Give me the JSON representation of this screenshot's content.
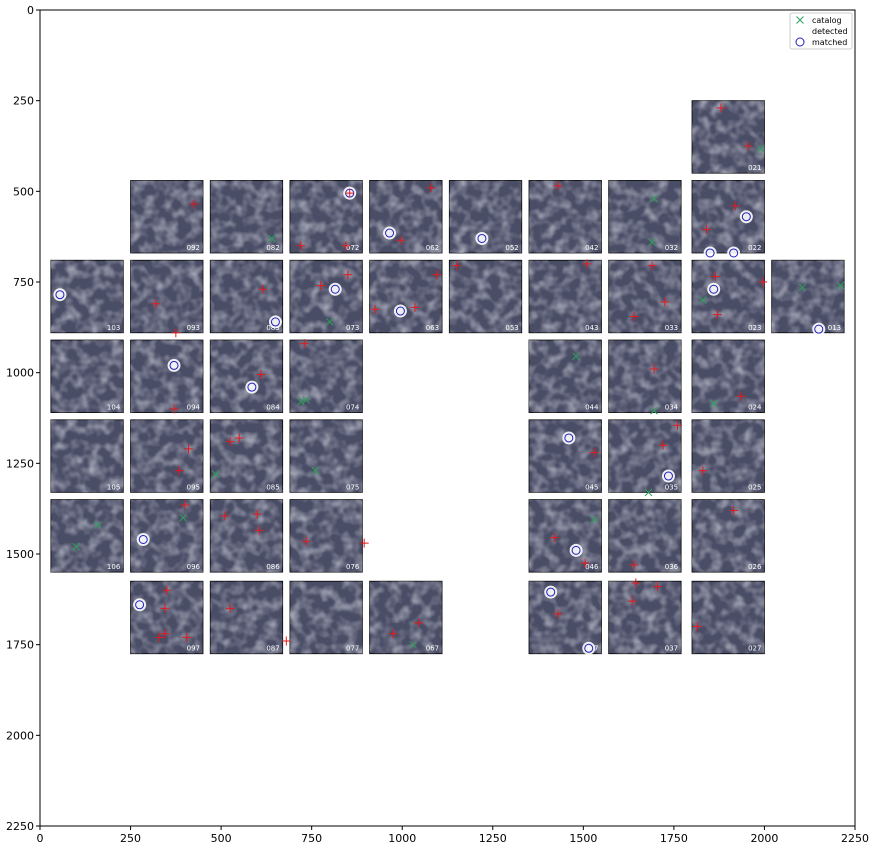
{
  "chart_data": {
    "type": "scatter",
    "xlim": [
      0,
      2250
    ],
    "ylim": [
      2250,
      0
    ],
    "x_ticks": [
      0,
      250,
      500,
      750,
      1000,
      1250,
      1500,
      1750,
      2000,
      2250
    ],
    "y_ticks": [
      0,
      250,
      500,
      750,
      1000,
      1250,
      1500,
      1750,
      2000,
      2250
    ],
    "grid": false,
    "legend": {
      "placement": "top-right",
      "entries": [
        {
          "name": "catalog",
          "marker": "x",
          "color": "#2ca05a"
        },
        {
          "name": "detected",
          "marker": "+",
          "color": "#e31a1c"
        },
        {
          "name": "matched",
          "marker": "o",
          "color": "#1f1fbf"
        }
      ]
    },
    "panel_size": 200,
    "panels": [
      {
        "id": "021",
        "x": 1800,
        "y": 250
      },
      {
        "id": "092",
        "x": 250,
        "y": 470
      },
      {
        "id": "082",
        "x": 470,
        "y": 470
      },
      {
        "id": "072",
        "x": 690,
        "y": 470
      },
      {
        "id": "062",
        "x": 910,
        "y": 470
      },
      {
        "id": "052",
        "x": 1130,
        "y": 470
      },
      {
        "id": "042",
        "x": 1350,
        "y": 470
      },
      {
        "id": "032",
        "x": 1570,
        "y": 470
      },
      {
        "id": "022",
        "x": 1800,
        "y": 470
      },
      {
        "id": "103",
        "x": 30,
        "y": 690
      },
      {
        "id": "093",
        "x": 250,
        "y": 690
      },
      {
        "id": "083",
        "x": 470,
        "y": 690
      },
      {
        "id": "073",
        "x": 690,
        "y": 690
      },
      {
        "id": "063",
        "x": 910,
        "y": 690
      },
      {
        "id": "053",
        "x": 1130,
        "y": 690
      },
      {
        "id": "043",
        "x": 1350,
        "y": 690
      },
      {
        "id": "033",
        "x": 1570,
        "y": 690
      },
      {
        "id": "023",
        "x": 1800,
        "y": 690
      },
      {
        "id": "013",
        "x": 2020,
        "y": 690
      },
      {
        "id": "104",
        "x": 30,
        "y": 910
      },
      {
        "id": "094",
        "x": 250,
        "y": 910
      },
      {
        "id": "084",
        "x": 470,
        "y": 910
      },
      {
        "id": "074",
        "x": 690,
        "y": 910
      },
      {
        "id": "044",
        "x": 1350,
        "y": 910
      },
      {
        "id": "034",
        "x": 1570,
        "y": 910
      },
      {
        "id": "024",
        "x": 1800,
        "y": 910
      },
      {
        "id": "105",
        "x": 30,
        "y": 1130
      },
      {
        "id": "095",
        "x": 250,
        "y": 1130
      },
      {
        "id": "085",
        "x": 470,
        "y": 1130
      },
      {
        "id": "075",
        "x": 690,
        "y": 1130
      },
      {
        "id": "045",
        "x": 1350,
        "y": 1130
      },
      {
        "id": "035",
        "x": 1570,
        "y": 1130
      },
      {
        "id": "025",
        "x": 1800,
        "y": 1130
      },
      {
        "id": "106",
        "x": 30,
        "y": 1350
      },
      {
        "id": "096",
        "x": 250,
        "y": 1350
      },
      {
        "id": "086",
        "x": 470,
        "y": 1350
      },
      {
        "id": "076",
        "x": 690,
        "y": 1350
      },
      {
        "id": "046",
        "x": 1350,
        "y": 1350
      },
      {
        "id": "036",
        "x": 1570,
        "y": 1350
      },
      {
        "id": "026",
        "x": 1800,
        "y": 1350
      },
      {
        "id": "097",
        "x": 250,
        "y": 1575
      },
      {
        "id": "087",
        "x": 470,
        "y": 1575
      },
      {
        "id": "077",
        "x": 690,
        "y": 1575
      },
      {
        "id": "067",
        "x": 910,
        "y": 1575
      },
      {
        "id": "047",
        "x": 1350,
        "y": 1575
      },
      {
        "id": "037",
        "x": 1570,
        "y": 1575
      },
      {
        "id": "027",
        "x": 1800,
        "y": 1575
      }
    ],
    "catalog": [
      {
        "x": 1990,
        "y": 383
      },
      {
        "x": 1695,
        "y": 520
      },
      {
        "x": 640,
        "y": 630
      },
      {
        "x": 1690,
        "y": 640
      },
      {
        "x": 1830,
        "y": 800
      },
      {
        "x": 2105,
        "y": 765
      },
      {
        "x": 2210,
        "y": 760
      },
      {
        "x": 800,
        "y": 860
      },
      {
        "x": 1480,
        "y": 955
      },
      {
        "x": 720,
        "y": 1080
      },
      {
        "x": 735,
        "y": 1075
      },
      {
        "x": 1860,
        "y": 1085
      },
      {
        "x": 1695,
        "y": 1105
      },
      {
        "x": 485,
        "y": 1280
      },
      {
        "x": 760,
        "y": 1270
      },
      {
        "x": 1680,
        "y": 1330
      },
      {
        "x": 160,
        "y": 1420
      },
      {
        "x": 100,
        "y": 1480
      },
      {
        "x": 395,
        "y": 1400
      },
      {
        "x": 1530,
        "y": 1405
      },
      {
        "x": 1030,
        "y": 1750
      }
    ],
    "detected": [
      {
        "x": 1880,
        "y": 270
      },
      {
        "x": 1955,
        "y": 375
      },
      {
        "x": 425,
        "y": 535
      },
      {
        "x": 855,
        "y": 505
      },
      {
        "x": 1080,
        "y": 490
      },
      {
        "x": 720,
        "y": 650
      },
      {
        "x": 845,
        "y": 650
      },
      {
        "x": 995,
        "y": 635
      },
      {
        "x": 1920,
        "y": 540
      },
      {
        "x": 1840,
        "y": 605
      },
      {
        "x": 1430,
        "y": 485
      },
      {
        "x": 320,
        "y": 810
      },
      {
        "x": 375,
        "y": 890
      },
      {
        "x": 615,
        "y": 770
      },
      {
        "x": 775,
        "y": 760
      },
      {
        "x": 850,
        "y": 730
      },
      {
        "x": 925,
        "y": 825
      },
      {
        "x": 1035,
        "y": 820
      },
      {
        "x": 1095,
        "y": 730
      },
      {
        "x": 1150,
        "y": 705
      },
      {
        "x": 1510,
        "y": 700
      },
      {
        "x": 1640,
        "y": 845
      },
      {
        "x": 1690,
        "y": 705
      },
      {
        "x": 1725,
        "y": 805
      },
      {
        "x": 1865,
        "y": 735
      },
      {
        "x": 1870,
        "y": 840
      },
      {
        "x": 1995,
        "y": 750
      },
      {
        "x": 370,
        "y": 1100
      },
      {
        "x": 610,
        "y": 1005
      },
      {
        "x": 730,
        "y": 920
      },
      {
        "x": 1695,
        "y": 990
      },
      {
        "x": 1935,
        "y": 1065
      },
      {
        "x": 410,
        "y": 1210
      },
      {
        "x": 385,
        "y": 1270
      },
      {
        "x": 525,
        "y": 1190
      },
      {
        "x": 550,
        "y": 1180
      },
      {
        "x": 1530,
        "y": 1220
      },
      {
        "x": 1720,
        "y": 1200
      },
      {
        "x": 1830,
        "y": 1270
      },
      {
        "x": 1760,
        "y": 1145
      },
      {
        "x": 400,
        "y": 1365
      },
      {
        "x": 510,
        "y": 1395
      },
      {
        "x": 600,
        "y": 1390
      },
      {
        "x": 605,
        "y": 1435
      },
      {
        "x": 735,
        "y": 1465
      },
      {
        "x": 895,
        "y": 1470
      },
      {
        "x": 1420,
        "y": 1455
      },
      {
        "x": 1505,
        "y": 1525
      },
      {
        "x": 1640,
        "y": 1530
      },
      {
        "x": 1915,
        "y": 1380
      },
      {
        "x": 350,
        "y": 1600
      },
      {
        "x": 345,
        "y": 1650
      },
      {
        "x": 330,
        "y": 1730
      },
      {
        "x": 345,
        "y": 1720
      },
      {
        "x": 405,
        "y": 1730
      },
      {
        "x": 525,
        "y": 1650
      },
      {
        "x": 680,
        "y": 1740
      },
      {
        "x": 975,
        "y": 1720
      },
      {
        "x": 1045,
        "y": 1690
      },
      {
        "x": 1430,
        "y": 1665
      },
      {
        "x": 1635,
        "y": 1630
      },
      {
        "x": 1645,
        "y": 1580
      },
      {
        "x": 1705,
        "y": 1590
      },
      {
        "x": 1815,
        "y": 1700
      }
    ],
    "matched": [
      {
        "x": 855,
        "y": 505
      },
      {
        "x": 965,
        "y": 615
      },
      {
        "x": 1220,
        "y": 630
      },
      {
        "x": 1950,
        "y": 570
      },
      {
        "x": 1850,
        "y": 670
      },
      {
        "x": 1915,
        "y": 670
      },
      {
        "x": 55,
        "y": 785
      },
      {
        "x": 650,
        "y": 860
      },
      {
        "x": 815,
        "y": 770
      },
      {
        "x": 995,
        "y": 830
      },
      {
        "x": 1860,
        "y": 770
      },
      {
        "x": 2150,
        "y": 880
      },
      {
        "x": 370,
        "y": 980
      },
      {
        "x": 585,
        "y": 1040
      },
      {
        "x": 1460,
        "y": 1180
      },
      {
        "x": 1735,
        "y": 1285
      },
      {
        "x": 285,
        "y": 1460
      },
      {
        "x": 1480,
        "y": 1490
      },
      {
        "x": 275,
        "y": 1640
      },
      {
        "x": 1410,
        "y": 1605
      },
      {
        "x": 1515,
        "y": 1760
      }
    ]
  }
}
